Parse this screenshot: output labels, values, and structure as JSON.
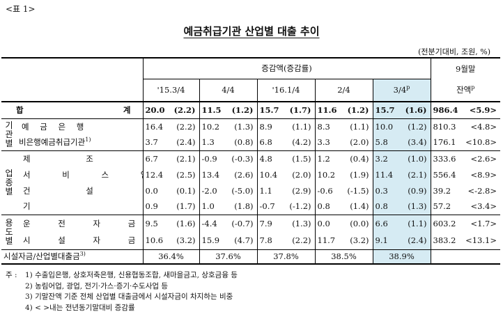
{
  "label": "<표 1>",
  "title": "예금취급기관 산업별 대출 추이",
  "unit": "(전분기대비, 조원, %)",
  "header": {
    "group": "증감액(증감률)",
    "cols": [
      "'15.3/4",
      "4/4",
      "'16.1/4",
      "2/4",
      "3/4"
    ],
    "col_last_sup": "p",
    "balance_line1": "9월말",
    "balance_line2": "잔액",
    "balance_sup": "p"
  },
  "total": {
    "label_a": "합",
    "label_b": "계",
    "values": [
      [
        "20.0",
        "(2.2)"
      ],
      [
        "11.5",
        "(1.2)"
      ],
      [
        "15.7",
        "(1.7)"
      ],
      [
        "11.6",
        "(1.2)"
      ],
      [
        "15.7",
        "(1.6)"
      ]
    ],
    "balance": "986.4",
    "balance_yoy": "<5.9>"
  },
  "groups": {
    "inst": {
      "chars": [
        "기",
        "관",
        "별"
      ],
      "rows": [
        {
          "label": "예 금 은 행",
          "values": [
            [
              "16.4",
              "(2.2)"
            ],
            [
              "10.2",
              "(1.3)"
            ],
            [
              "8.9",
              "(1.1)"
            ],
            [
              "8.3",
              "(1.1)"
            ],
            [
              "10.0",
              "(1.2)"
            ]
          ],
          "balance": "810.3",
          "balance_yoy": "<4.8>"
        },
        {
          "label": "비은행예금취급기관",
          "sup": "1)",
          "values": [
            [
              "3.7",
              "(2.4)"
            ],
            [
              "1.3",
              "(0.8)"
            ],
            [
              "6.8",
              "(4.2)"
            ],
            [
              "3.3",
              "(2.0)"
            ],
            [
              "5.8",
              "(3.4)"
            ]
          ],
          "balance": "176.1",
          "balance_yoy": "<10.8>"
        }
      ]
    },
    "industry": {
      "chars": [
        "업",
        "종",
        "별"
      ],
      "rows": [
        {
          "label": "제 조 업",
          "values": [
            [
              "6.7",
              "(2.1)"
            ],
            [
              "-0.9",
              "(-0.3)"
            ],
            [
              "4.8",
              "(1.5)"
            ],
            [
              "1.2",
              "(0.4)"
            ],
            [
              "3.2",
              "(1.0)"
            ]
          ],
          "balance": "333.6",
          "balance_yoy": "<2.6>"
        },
        {
          "label": "서 비 스 업",
          "values": [
            [
              "12.4",
              "(2.5)"
            ],
            [
              "13.4",
              "(2.6)"
            ],
            [
              "10.4",
              "(2.0)"
            ],
            [
              "10.2",
              "(1.9)"
            ],
            [
              "11.4",
              "(2.1)"
            ]
          ],
          "balance": "556.4",
          "balance_yoy": "<8.9>"
        },
        {
          "label": "건 설 업",
          "values": [
            [
              "0.0",
              "(0.1)"
            ],
            [
              "-2.0",
              "(-5.0)"
            ],
            [
              "1.1",
              "(2.9)"
            ],
            [
              "-0.6",
              "(-1.5)"
            ],
            [
              "0.3",
              "(0.9)"
            ]
          ],
          "balance": "39.2",
          "balance_yoy": "<-2.8>"
        },
        {
          "label": "기 타",
          "sup": "2)",
          "values": [
            [
              "0.9",
              "(1.7)"
            ],
            [
              "1.0",
              "(1.8)"
            ],
            [
              "-0.7",
              "(-1.2)"
            ],
            [
              "0.8",
              "(1.4)"
            ],
            [
              "0.8",
              "(1.3)"
            ]
          ],
          "balance": "57.2",
          "balance_yoy": "<3.4>"
        }
      ]
    },
    "usage": {
      "chars": [
        "용",
        "도",
        "별"
      ],
      "rows": [
        {
          "label": "운 전 자 금",
          "values": [
            [
              "9.5",
              "(1.6)"
            ],
            [
              "-4.4",
              "(-0.7)"
            ],
            [
              "7.9",
              "(1.3)"
            ],
            [
              "0.0",
              "(0.0)"
            ],
            [
              "6.6",
              "(1.1)"
            ]
          ],
          "balance": "603.2",
          "balance_yoy": "<1.7>"
        },
        {
          "label": "시 설 자 금",
          "values": [
            [
              "10.6",
              "(3.2)"
            ],
            [
              "15.9",
              "(4.7)"
            ],
            [
              "7.8",
              "(2.2)"
            ],
            [
              "11.7",
              "(3.2)"
            ],
            [
              "9.1",
              "(2.4)"
            ]
          ],
          "balance": "383.2",
          "balance_yoy": "<13.1>"
        }
      ]
    }
  },
  "ratio": {
    "label": "시설자금/산업별대출금",
    "sup": "3)",
    "values": [
      "36.4%",
      "37.6%",
      "37.8%",
      "38.5%",
      "38.9%"
    ]
  },
  "notes": {
    "lead": "주 :",
    "items": [
      "1) 수출입은행, 상호저축은행, 신용협동조합, 새마을금고, 상호금융 등",
      "2) 농림어업, 광업, 전기·가스·증기·수도사업 등",
      "3) 기말잔액 기준 전체 산업별 대출금에서 시설자금이 차지하는 비중",
      "4) <   >내는 전년동기말대비 증감률"
    ]
  }
}
